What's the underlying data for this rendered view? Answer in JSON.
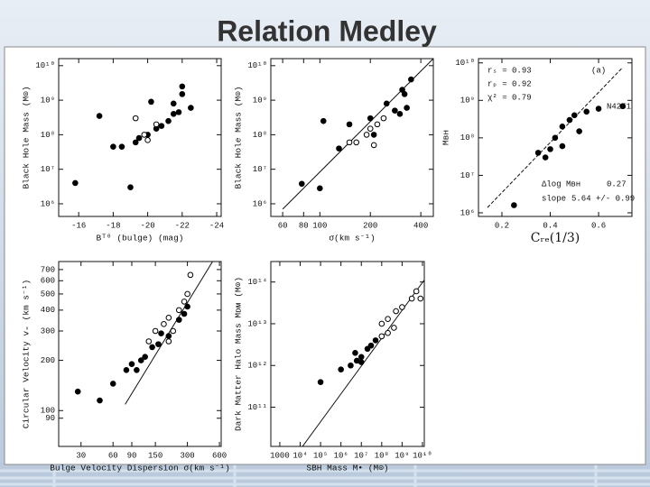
{
  "slide": {
    "title": "Relation Medley"
  },
  "chart_data": [
    {
      "type": "scatter",
      "xlabel": "Bᵀ⁰ (bulge) (mag)",
      "ylabel": "Black Hole Mass (M⊙)",
      "xlog": false,
      "ylog": true,
      "xlim": [
        -14.84,
        -24.26
      ],
      "ylim": [
        430000,
        16000000000
      ],
      "xticks": [
        -16,
        -18,
        -20,
        -22,
        -24
      ],
      "yticks": [
        {
          "value": 1000000,
          "label": "10⁶"
        },
        {
          "value": 10000000,
          "label": "10⁷"
        },
        {
          "value": 100000000,
          "label": "10⁸"
        },
        {
          "value": 1000000000,
          "label": "10⁹"
        },
        {
          "value": 10000000000,
          "label": "10¹⁰"
        }
      ],
      "series": [
        {
          "marker": "filled",
          "color": "#000000",
          "x": [
            -15.8,
            -17.2,
            -18.0,
            -18.5,
            -19.0,
            -19.3,
            -20.2,
            -20.0,
            -20.5,
            -20.8,
            -21.2,
            -21.5,
            -21.8,
            -22.0,
            -22.0,
            -22.5,
            -21.5,
            -19.5
          ],
          "values": [
            4000000,
            350000000,
            45000000,
            45000000,
            3000000,
            60000000,
            900000000,
            100000000,
            150000000,
            180000000,
            250000000,
            400000000,
            450000000,
            1500000000,
            2500000000,
            600000000,
            800000000,
            80000000
          ]
        },
        {
          "marker": "open",
          "color": "#000000",
          "x": [
            -19.8,
            -20.5,
            -19.3,
            -20.0
          ],
          "values": [
            100000000,
            200000000,
            300000000,
            70000000
          ]
        }
      ]
    },
    {
      "type": "scatter",
      "xlabel": "σ(km s⁻¹)",
      "ylabel": "Black Hole Mass (M⊙)",
      "xlog": true,
      "ylog": true,
      "xlim": [
        51,
        475
      ],
      "ylim": [
        430000,
        16000000000
      ],
      "xticks": [
        60,
        80,
        100,
        200,
        400
      ],
      "yticks": [
        {
          "value": 1000000,
          "label": "10⁶"
        },
        {
          "value": 10000000,
          "label": "10⁷"
        },
        {
          "value": 100000000,
          "label": "10⁸"
        },
        {
          "value": 1000000000,
          "label": "10⁹"
        },
        {
          "value": 10000000000,
          "label": "10¹⁰"
        }
      ],
      "fit": {
        "x": [
          60,
          475
        ],
        "y": [
          700000,
          16000000000
        ]
      },
      "series": [
        {
          "marker": "filled",
          "color": "#000000",
          "x": [
            78,
            100,
            105,
            130,
            150,
            200,
            210,
            250,
            280,
            300,
            320,
            350,
            310,
            330
          ],
          "values": [
            3800000,
            2800000,
            250000000,
            40000000,
            200000000,
            300000000,
            100000000,
            800000000,
            500000000,
            400000000,
            1500000000,
            4000000000,
            2000000000,
            600000000
          ]
        },
        {
          "marker": "open",
          "color": "#000000",
          "x": [
            150,
            165,
            190,
            200,
            210,
            220,
            240
          ],
          "values": [
            60000000,
            60000000,
            100000000,
            150000000,
            50000000,
            200000000,
            300000000
          ]
        }
      ]
    },
    {
      "type": "scatter",
      "xlabel": "Cᵣₑ(1/3)",
      "ylabel": "Mʙʜ",
      "xlog": false,
      "ylog": true,
      "xlim": [
        0.103,
        0.738
      ],
      "ylim": [
        800000,
        13000000000
      ],
      "xticks": [
        0.2,
        0.4,
        0.6
      ],
      "yticks": [
        {
          "value": 1000000,
          "label": "10⁶"
        },
        {
          "value": 10000000,
          "label": "10⁷"
        },
        {
          "value": 100000000,
          "label": "10⁸"
        },
        {
          "value": 1000000000,
          "label": "10⁹"
        },
        {
          "value": 10000000000,
          "label": "10¹⁰"
        }
      ],
      "fit": {
        "x": [
          0.14,
          0.7
        ],
        "y": [
          1380000,
          7600000000
        ]
      },
      "annotations": [
        "rₛ = 0.93",
        "rₚ = 0.92",
        "χ² = 0.79",
        "(a)",
        "N4251",
        "Δlog Mʙʜ",
        "0.27",
        "slope",
        "5.64 +/- 0.99"
      ],
      "series": [
        {
          "marker": "filled",
          "color": "#000000",
          "x": [
            0.25,
            0.35,
            0.4,
            0.42,
            0.45,
            0.48,
            0.5,
            0.55,
            0.6,
            0.7,
            0.38,
            0.52,
            0.45
          ],
          "values": [
            1600000,
            40000000,
            50000000,
            100000000,
            60000000,
            300000000,
            400000000,
            500000000,
            600000000,
            700000000,
            30000000,
            150000000,
            200000000
          ]
        }
      ]
    },
    {
      "type": "scatter",
      "xlabel": "Bulge Velocity Dispersion σ(km s⁻¹)",
      "ylabel": "Circular Velocity v₌ (km s⁻¹)",
      "xlog": true,
      "ylog": true,
      "xlim": [
        18.5,
        623
      ],
      "ylim": [
        61,
        782
      ],
      "xticks": [
        30,
        60,
        90,
        150,
        300,
        600
      ],
      "yticks": [
        90,
        100,
        200,
        300,
        400,
        500,
        600,
        700
      ],
      "fit": {
        "x": [
          78,
          537
        ],
        "y": [
          109,
          813
        ]
      },
      "series": [
        {
          "marker": "filled",
          "color": "#000000",
          "x": [
            28,
            45,
            60,
            80,
            90,
            100,
            110,
            120,
            140,
            160,
            170,
            200,
            250,
            280,
            300
          ],
          "values": [
            130,
            115,
            145,
            175,
            190,
            175,
            200,
            210,
            240,
            250,
            290,
            280,
            350,
            380,
            420
          ]
        },
        {
          "marker": "open",
          "color": "#000000",
          "x": [
            130,
            150,
            180,
            200,
            220,
            250,
            280,
            300,
            320,
            200
          ],
          "values": [
            260,
            300,
            330,
            360,
            300,
            400,
            450,
            500,
            650,
            260
          ]
        }
      ]
    },
    {
      "type": "scatter",
      "xlabel": "SBH Mass M• (M⊙)",
      "ylabel": "Dark Matter Halo Mass Mᴅᴍ (M⊙)",
      "xlog": true,
      "ylog": true,
      "xlim": [
        363,
        12300000000
      ],
      "ylim": [
        11500000000,
        309000000000000
      ],
      "xticks": [
        1000,
        {
          "value": 10000,
          "label": "10⁴"
        },
        {
          "value": 100000,
          "label": "10⁵"
        },
        {
          "value": 1000000,
          "label": "10⁶"
        },
        {
          "value": 10000000,
          "label": "10⁷"
        },
        {
          "value": 100000000,
          "label": "10⁸"
        },
        {
          "value": 1000000000,
          "label": "10⁹"
        },
        {
          "value": 10000000000,
          "label": "10¹⁰"
        }
      ],
      "yticks": [
        {
          "value": 100000000000,
          "label": "10¹¹"
        },
        {
          "value": 1000000000000,
          "label": "10¹²"
        },
        {
          "value": 10000000000000,
          "label": "10¹³"
        },
        {
          "value": 100000000000000,
          "label": "10¹⁴"
        }
      ],
      "fit": {
        "x": [
          13000,
          12000000000
        ],
        "y": [
          11500000000,
          110000000000000
        ]
      },
      "series": [
        {
          "marker": "filled",
          "color": "#000000",
          "x": [
            100000,
            1000000,
            3000000,
            6000000,
            10000000,
            20000000,
            30000000,
            50000000,
            10000000,
            5000000
          ],
          "values": [
            400000000000,
            800000000000,
            1000000000000,
            1300000000000,
            1600000000000,
            2500000000000,
            3000000000000,
            4000000000000,
            1200000000000,
            2000000000000
          ]
        },
        {
          "marker": "open",
          "color": "#000000",
          "x": [
            100000000,
            200000000,
            500000000,
            1000000000,
            3000000000,
            5000000000,
            8000000000,
            200000000,
            100000000,
            400000000
          ],
          "values": [
            10000000000000,
            13000000000000,
            20000000000000,
            25000000000000,
            40000000000000,
            60000000000000,
            40000000000000,
            6000000000000,
            5000000000000,
            8000000000000
          ]
        }
      ]
    }
  ]
}
